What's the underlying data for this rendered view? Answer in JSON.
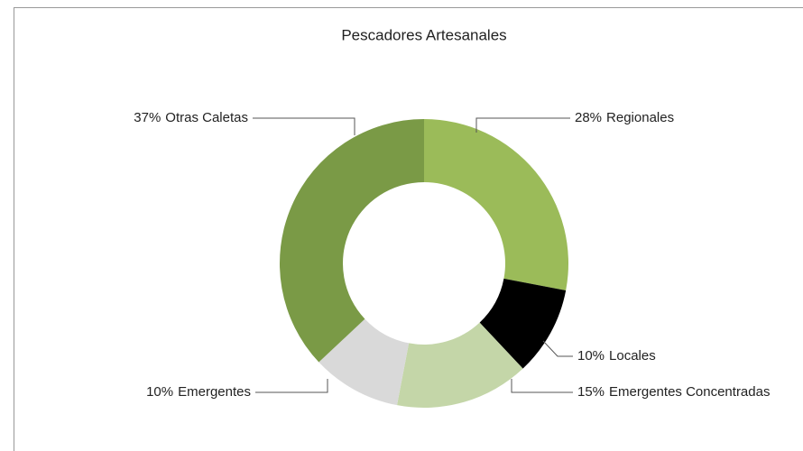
{
  "chart_data": {
    "type": "donut",
    "title": "Pescadores Artesanales",
    "categories": [
      "Regionales",
      "Locales",
      "Emergentes Concentradas",
      "Emergentes",
      "Otras Caletas"
    ],
    "values": [
      28,
      10,
      15,
      10,
      37
    ],
    "value_labels": [
      "28%",
      "10%",
      "15%",
      "10%",
      "37%"
    ],
    "colors": [
      "#9bbb59",
      "#000000",
      "#c4d6a8",
      "#d9d9d9",
      "#7a9a46"
    ]
  }
}
